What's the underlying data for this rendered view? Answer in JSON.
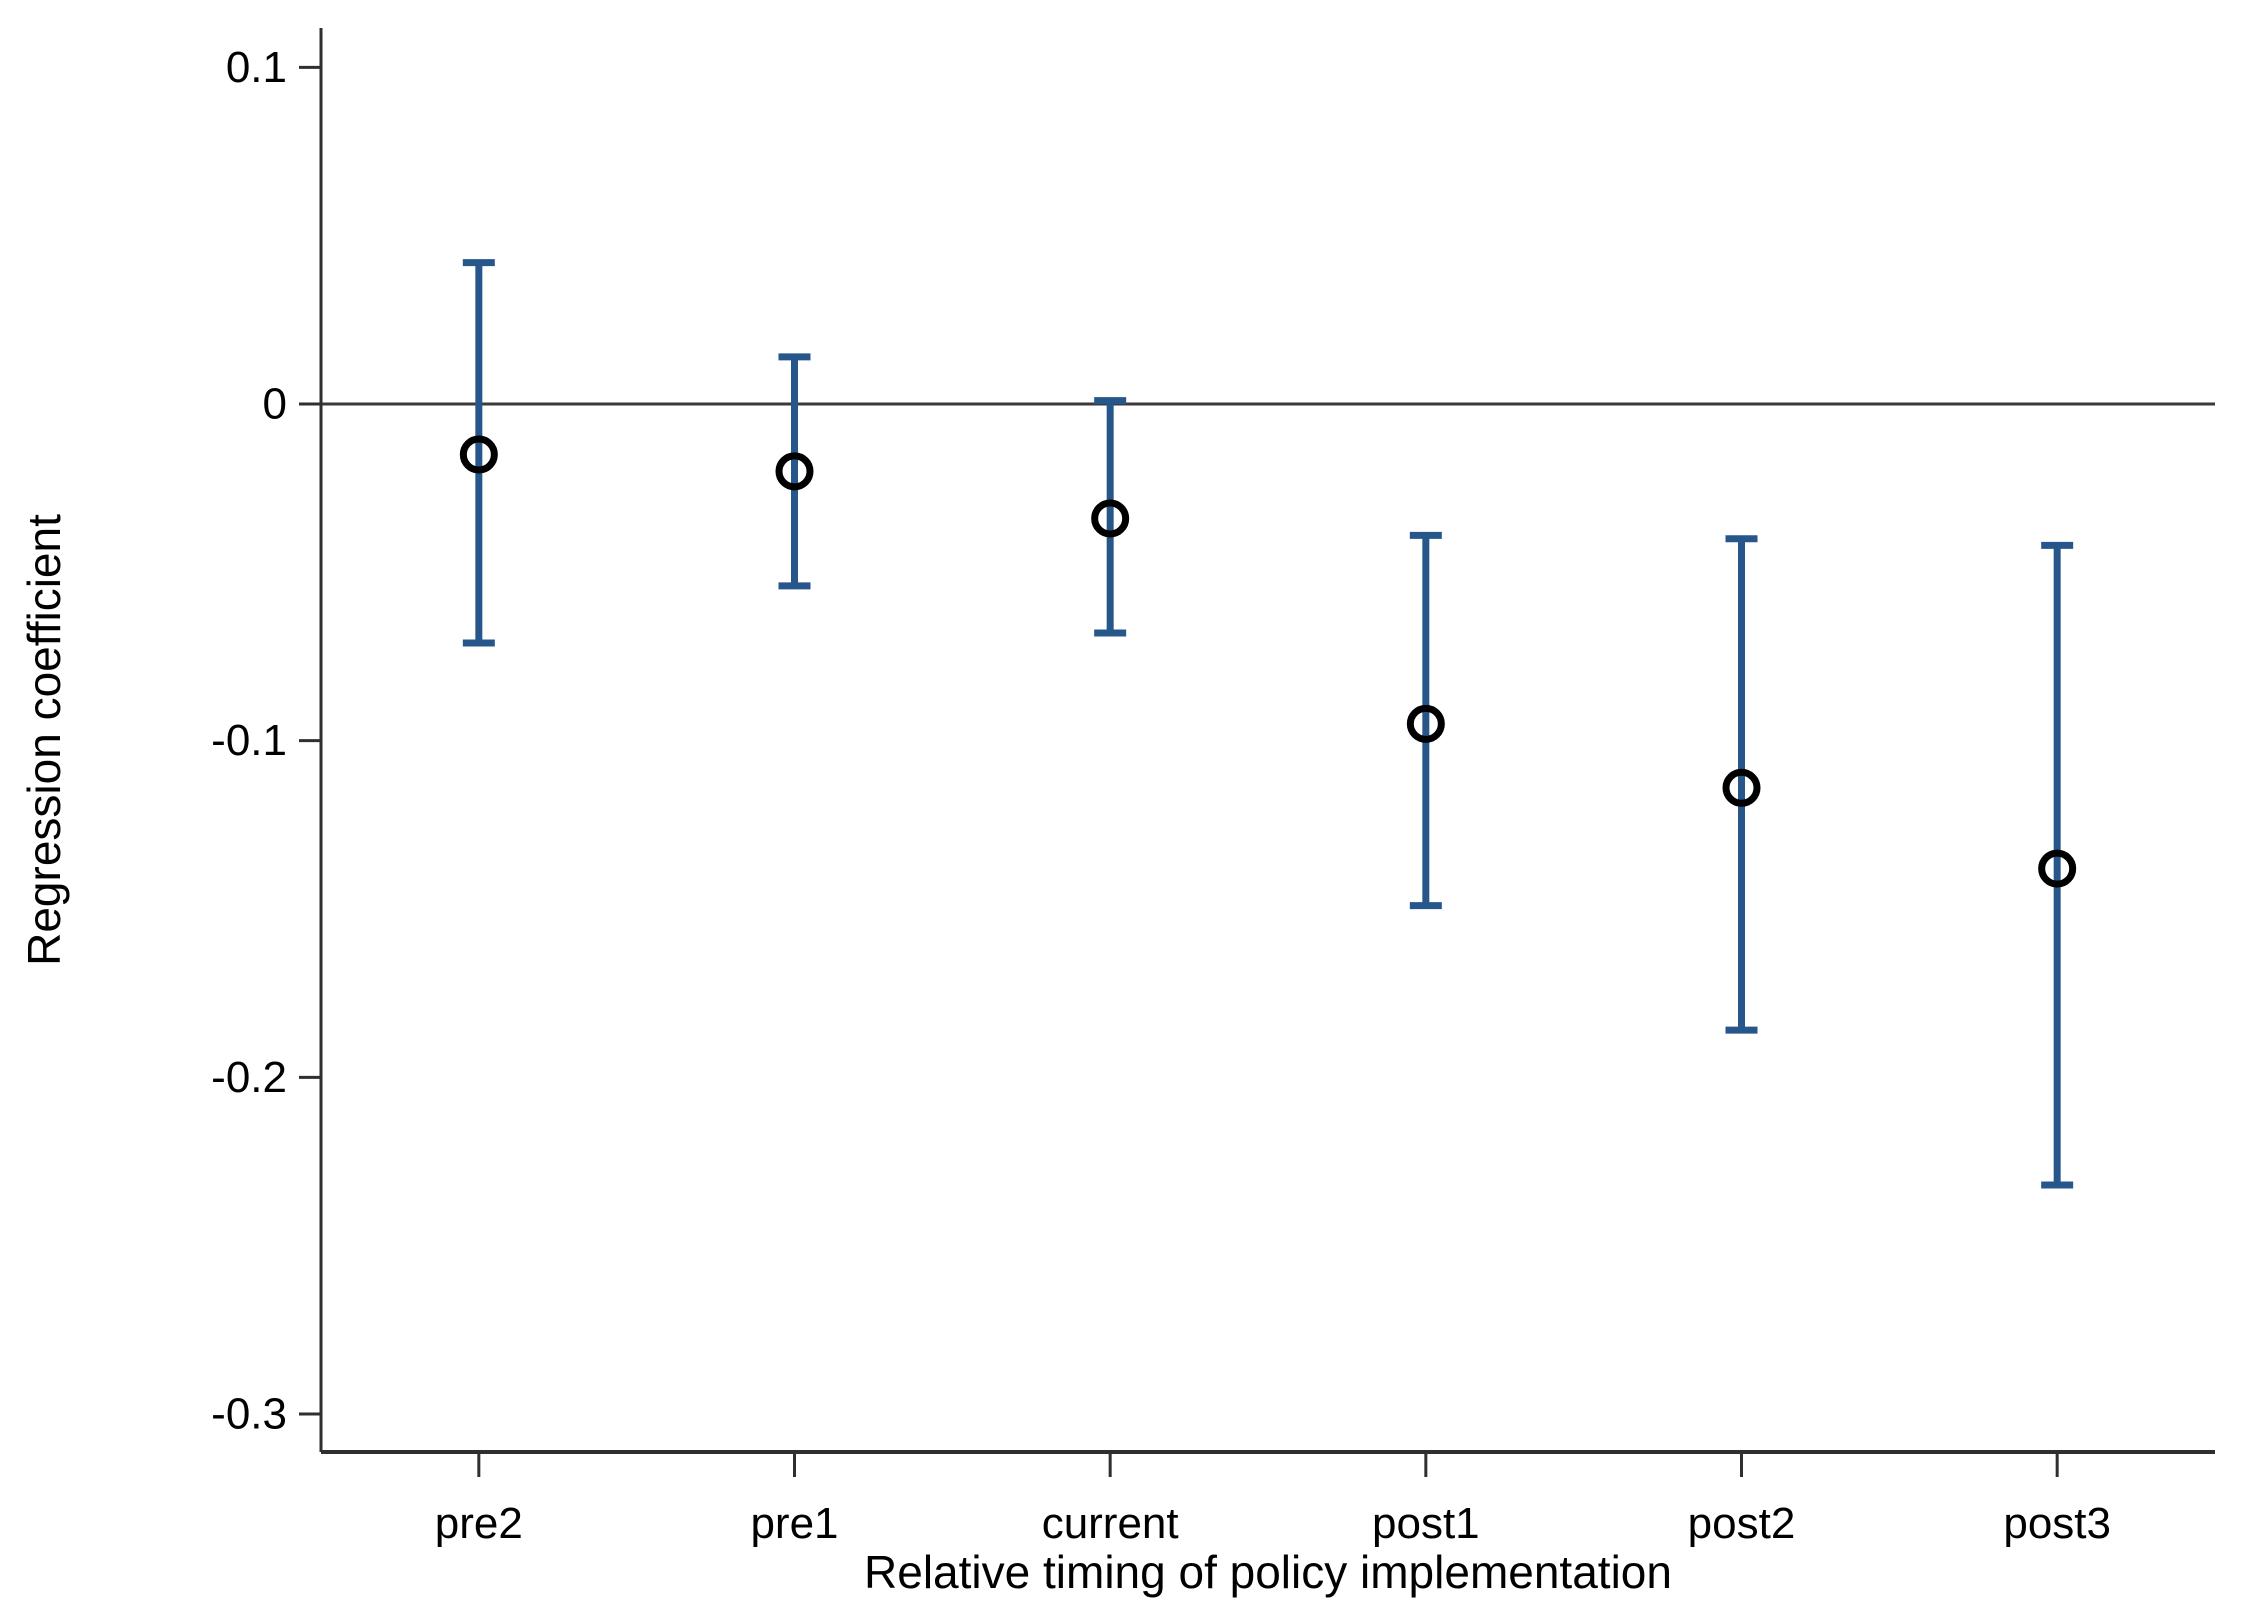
{
  "figure": {
    "background": "#ffffff"
  },
  "chart_data": {
    "type": "scatter",
    "subtype": "coefficient-plot-with-error-bars",
    "title": "",
    "xlabel": "Relative timing of policy implementation",
    "ylabel": "Regression coefficient",
    "categories": [
      "pre2",
      "pre1",
      "current",
      "post1",
      "post2",
      "post3"
    ],
    "series": [
      {
        "name": "regression-coefficient",
        "values": [
          -0.015,
          -0.02,
          -0.034,
          -0.095,
          -0.114,
          -0.138
        ],
        "ci_low": [
          -0.071,
          -0.054,
          -0.068,
          -0.149,
          -0.186,
          -0.232
        ],
        "ci_high": [
          0.042,
          0.014,
          0.001,
          -0.039,
          -0.04,
          -0.042
        ]
      }
    ],
    "yticks": [
      0.1,
      0,
      -0.1,
      -0.2,
      -0.3
    ],
    "ytick_labels": [
      "0.1",
      "0",
      "-0.1",
      "-0.2",
      "-0.3"
    ],
    "ylim": [
      -0.3113,
      0.1117
    ],
    "reference_line_y": 0,
    "grid": false,
    "legend": false,
    "colors": {
      "errorbar": "#27578a",
      "marker_stroke": "#000000",
      "axis": "#2f2f2f",
      "reference_line": "#3a3a3a",
      "text": "#000000"
    }
  }
}
